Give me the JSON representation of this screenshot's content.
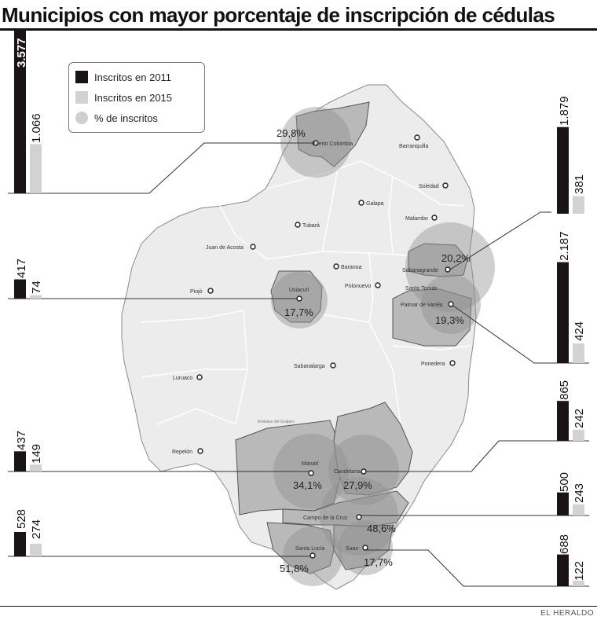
{
  "title": "Municipios con mayor porcentaje de inscripción de cédulas",
  "credit": "EL HERALDO",
  "legend": {
    "item_2011": "Inscritos en 2011",
    "item_2015": "Inscritos en 2015",
    "item_pct": "% de inscritos"
  },
  "colors": {
    "bar_2011": "#1a1414",
    "bar_2015": "#d2d2d2",
    "circle": "#bdbdbd",
    "map_light": "#ececec",
    "map_dark": "#b9b9b9"
  },
  "municipalities": [
    {
      "name": "Puerto Colombia",
      "pct": "29,8%",
      "inscritos_2011": "3.577",
      "inscritos_2015": "1.066",
      "v2011": 3577,
      "v2015": 1066,
      "side": "left"
    },
    {
      "name": "Usiacurí",
      "pct": "17,7%",
      "inscritos_2011": "417",
      "inscritos_2015": "74",
      "v2011": 417,
      "v2015": 74,
      "side": "left"
    },
    {
      "name": "Manatí",
      "pct": "34,1%",
      "inscritos_2011": "437",
      "inscritos_2015": "149",
      "v2011": 437,
      "v2015": 149,
      "side": "left"
    },
    {
      "name": "Santa Lucía",
      "pct": "51,8%",
      "inscritos_2011": "528",
      "inscritos_2015": "274",
      "v2011": 528,
      "v2015": 274,
      "side": "left"
    },
    {
      "name": "Sabanagrande",
      "pct": "20,2%",
      "inscritos_2011": "1.879",
      "inscritos_2015": "381",
      "v2011": 1879,
      "v2015": 381,
      "side": "right"
    },
    {
      "name": "Palmar de Varela",
      "pct": "19,3%",
      "inscritos_2011": "2.187",
      "inscritos_2015": "424",
      "v2011": 2187,
      "v2015": 424,
      "side": "right"
    },
    {
      "name": "Candelaria",
      "pct": "27,9%",
      "inscritos_2011": "865",
      "inscritos_2015": "242",
      "v2011": 865,
      "v2015": 242,
      "side": "right"
    },
    {
      "name": "Campo de la Cruz",
      "pct": "48,6%",
      "inscritos_2011": "500",
      "inscritos_2015": "243",
      "v2011": 500,
      "v2015": 243,
      "side": "right"
    },
    {
      "name": "Suan",
      "pct": "17,7%",
      "inscritos_2011": "688",
      "inscritos_2015": "122",
      "v2011": 688,
      "v2015": 122,
      "side": "right"
    }
  ],
  "towns": {
    "puerto_colombia": "Puerto Colombia",
    "barranquilla": "Barranquilla",
    "soledad": "Soledad",
    "galapa": "Galapa",
    "malambo": "Malambo",
    "tubara": "Tubará",
    "juan_de_acosta": "Juan de Acosta",
    "baranoa": "Baranoa",
    "sabanagrande": "Sabanagrande",
    "santo_tomas": "Santo Tomás",
    "polonuevo": "Polonuevo",
    "palmar_de_varela": "Palmar de Varela",
    "usiacuri": "Usiacurí",
    "piojo": "Piojó",
    "sabanalarga": "Sabanalarga",
    "ponedera": "Ponedera",
    "luruaco": "Luruaco",
    "repelon": "Repelón",
    "manati": "Manatí",
    "candelaria": "Candelaria",
    "campo_de_la_cruz": "Campo de la Cruz",
    "santa_lucia": "Santa Lucía",
    "suan": "Suan",
    "embalse": "Embalse del Guájaro"
  }
}
